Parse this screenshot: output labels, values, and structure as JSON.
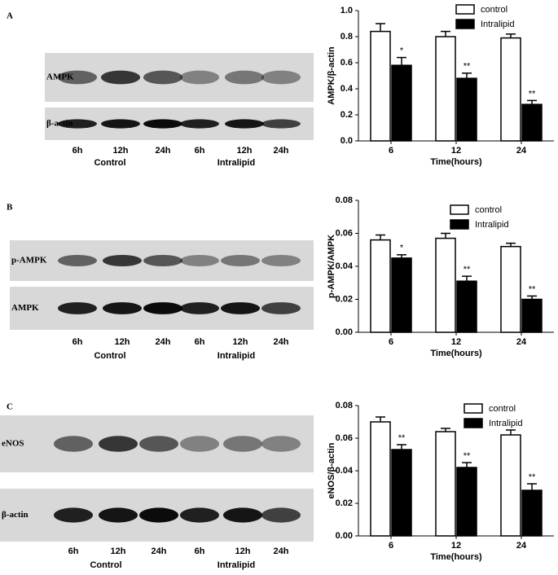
{
  "panels": [
    {
      "label": "A",
      "rows": [
        "AMPK",
        "β-actin"
      ],
      "lanes": [
        "6h",
        "12h",
        "24h",
        "6h",
        "12h",
        "24h"
      ],
      "groups": [
        "Control",
        "Intralipid"
      ]
    },
    {
      "label": "B",
      "rows": [
        "p-AMPK",
        "AMPK"
      ],
      "lanes": [
        "6h",
        "12h",
        "24h",
        "6h",
        "12h",
        "24h"
      ],
      "groups": [
        "Control",
        "Intralipid"
      ]
    },
    {
      "label": "C",
      "rows": [
        "eNOS",
        "β-actin"
      ],
      "lanes": [
        "6h",
        "12h",
        "24h",
        "6h",
        "12h",
        "24h"
      ],
      "groups": [
        "Control",
        "Intralipid"
      ]
    }
  ],
  "chart_data": [
    {
      "type": "bar",
      "y_label": "AMPK/β-actin",
      "x_label": "Time(hours)",
      "categories": [
        "6",
        "12",
        "24"
      ],
      "ylim": [
        0,
        1.0
      ],
      "yticks": [
        {
          "value": 0,
          "label": "0.0"
        },
        0.2,
        0.4,
        0.6,
        0.8,
        {
          "value": 1.0,
          "label": "1.0"
        }
      ],
      "series": [
        {
          "name": "control",
          "color": "#ffffff",
          "values": [
            0.84,
            0.8,
            0.79
          ],
          "errors": [
            0.06,
            0.04,
            0.03
          ]
        },
        {
          "name": "Intralipid",
          "color": "#000000",
          "values": [
            0.58,
            0.48,
            0.28
          ],
          "errors": [
            0.06,
            0.04,
            0.03
          ],
          "significance": [
            "*",
            "**",
            "**"
          ]
        }
      ]
    },
    {
      "type": "bar",
      "y_label": "p-AMPK/AMPK",
      "x_label": "Time(hours)",
      "categories": [
        "6",
        "12",
        "24"
      ],
      "ylim": [
        0,
        0.08
      ],
      "yticks": [
        {
          "value": 0,
          "label": "0.00"
        },
        0.02,
        0.04,
        0.06,
        0.08
      ],
      "series": [
        {
          "name": "control",
          "color": "#ffffff",
          "values": [
            0.056,
            0.057,
            0.052
          ],
          "errors": [
            0.003,
            0.003,
            0.002
          ]
        },
        {
          "name": "Intralipid",
          "color": "#000000",
          "values": [
            0.045,
            0.031,
            0.02
          ],
          "errors": [
            0.002,
            0.003,
            0.002
          ],
          "significance": [
            "*",
            "**",
            "**"
          ]
        }
      ]
    },
    {
      "type": "bar",
      "y_label": "eNOS/β-actin",
      "x_label": "Time(hours)",
      "categories": [
        "6",
        "12",
        "24"
      ],
      "ylim": [
        0,
        0.08
      ],
      "yticks": [
        {
          "value": 0,
          "label": "0.00"
        },
        0.02,
        0.04,
        0.06,
        0.08
      ],
      "series": [
        {
          "name": "control",
          "color": "#ffffff",
          "values": [
            0.07,
            0.064,
            0.062
          ],
          "errors": [
            0.003,
            0.002,
            0.003
          ]
        },
        {
          "name": "Intralipid",
          "color": "#000000",
          "values": [
            0.053,
            0.042,
            0.028
          ],
          "errors": [
            0.003,
            0.003,
            0.004
          ],
          "significance": [
            "**",
            "**",
            "**"
          ]
        }
      ]
    }
  ]
}
